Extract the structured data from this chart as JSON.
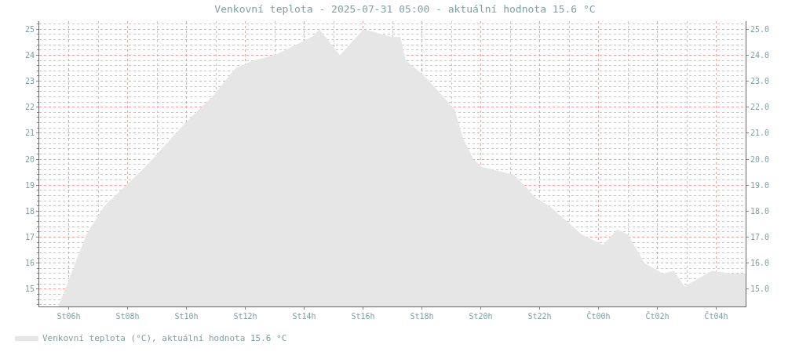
{
  "chart_data": {
    "type": "area",
    "title": "Venkovní teplota - 2025-07-31 05:00 - aktuální hodnota 15.6 °C",
    "x": [
      "2025-07-30T05:40",
      "2025-07-30T05:53",
      "2025-07-30T06:36",
      "2025-07-30T07:13",
      "2025-07-30T08:39",
      "2025-07-30T09:53",
      "2025-07-30T10:57",
      "2025-07-30T11:40",
      "2025-07-30T12:17",
      "2025-07-30T13:00",
      "2025-07-30T13:43",
      "2025-07-30T14:20",
      "2025-07-30T14:31",
      "2025-07-30T15:13",
      "2025-07-30T16:01",
      "2025-07-30T17:00",
      "2025-07-30T17:16",
      "2025-07-30T17:27",
      "2025-07-30T18:05",
      "2025-07-30T18:34",
      "2025-07-30T19:07",
      "2025-07-30T19:24",
      "2025-07-30T19:45",
      "2025-07-30T20:02",
      "2025-07-30T21:08",
      "2025-07-30T21:53",
      "2025-07-30T22:20",
      "2025-07-30T23:26",
      "2025-07-31T00:10",
      "2025-07-31T00:38",
      "2025-07-31T01:00",
      "2025-07-31T01:34",
      "2025-07-31T02:12",
      "2025-07-31T02:34",
      "2025-07-31T02:55",
      "2025-07-31T03:51",
      "2025-07-31T04:34",
      "2025-07-31T05:00"
    ],
    "series": [
      {
        "name": "Venkovní teplota (°C), aktuální hodnota 15.6 °C",
        "color": "#e6e6e6",
        "values": [
          14.4,
          15.0,
          17.1,
          18.2,
          19.75,
          21.3,
          22.5,
          23.5,
          23.8,
          24.0,
          24.4,
          24.75,
          25.0,
          24.0,
          25.0,
          24.7,
          24.7,
          23.8,
          23.2,
          22.6,
          21.9,
          20.8,
          20.0,
          19.7,
          19.4,
          18.5,
          18.2,
          17.1,
          16.7,
          17.3,
          17.1,
          16.0,
          15.6,
          15.7,
          15.1,
          15.7,
          15.6,
          15.6
        ]
      }
    ],
    "xlim": [
      "2025-07-30T05:00",
      "2025-07-31T05:00"
    ],
    "xticks": [
      {
        "value": "2025-07-30T06:00",
        "label": "St06h"
      },
      {
        "value": "2025-07-30T08:00",
        "label": "St08h"
      },
      {
        "value": "2025-07-30T10:00",
        "label": "St10h"
      },
      {
        "value": "2025-07-30T12:00",
        "label": "St12h"
      },
      {
        "value": "2025-07-30T14:00",
        "label": "St14h"
      },
      {
        "value": "2025-07-30T16:00",
        "label": "St16h"
      },
      {
        "value": "2025-07-30T18:00",
        "label": "St18h"
      },
      {
        "value": "2025-07-30T20:00",
        "label": "St20h"
      },
      {
        "value": "2025-07-30T22:00",
        "label": "St22h"
      },
      {
        "value": "2025-07-31T00:00",
        "label": "Čt00h"
      },
      {
        "value": "2025-07-31T02:00",
        "label": "Čt02h"
      },
      {
        "value": "2025-07-31T04:00",
        "label": "Čt04h"
      }
    ],
    "ylim": [
      14.33,
      25.31
    ],
    "yticks": [
      15,
      16,
      17,
      18,
      19,
      20,
      21,
      22,
      23,
      24,
      25
    ],
    "y2lim": [
      14.33,
      25.31
    ],
    "y2ticks": [
      {
        "value": 15,
        "label": "15.0"
      },
      {
        "value": 16,
        "label": "16.0"
      },
      {
        "value": 17,
        "label": "17.0"
      },
      {
        "value": 18,
        "label": "18.0"
      },
      {
        "value": 19,
        "label": "19.0"
      },
      {
        "value": 20,
        "label": "20.0"
      },
      {
        "value": 21,
        "label": "21.0"
      },
      {
        "value": 22,
        "label": "22.0"
      },
      {
        "value": 23,
        "label": "23.0"
      },
      {
        "value": 24,
        "label": "24.0"
      },
      {
        "value": 25,
        "label": "25.0"
      }
    ],
    "grid": true,
    "legend": "bottom"
  }
}
